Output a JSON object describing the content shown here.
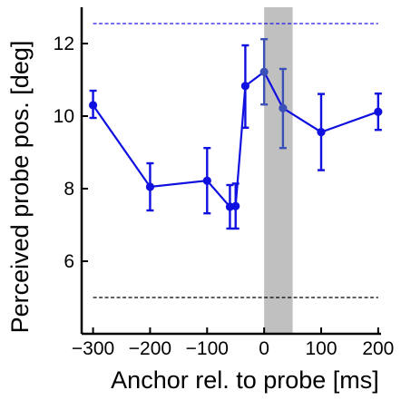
{
  "chart_data": {
    "type": "line",
    "title": "",
    "xlabel": "Anchor rel. to probe [ms]",
    "ylabel": "Perceived probe pos. [deg]",
    "xlim": [
      -320,
      205
    ],
    "ylim": [
      4.0,
      13.0
    ],
    "x_ticks": [
      -300,
      -200,
      -100,
      0,
      100,
      200
    ],
    "x_tick_labels": [
      "−300",
      "−200",
      "−100",
      "0",
      "100",
      "200"
    ],
    "y_ticks": [
      6,
      8,
      10,
      12
    ],
    "y_tick_labels": [
      "6",
      "8",
      "10",
      "12"
    ],
    "grid": false,
    "legend": "none",
    "shaded_region": {
      "x_from": 0,
      "x_to": 50,
      "color": "#c0c0c0"
    },
    "reference_lines": [
      {
        "y": 12.55,
        "color": "#1a1ae6"
      },
      {
        "y": 5.0,
        "color": "#000000"
      }
    ],
    "series": [
      {
        "color": "#1010e0",
        "x": [
          -300,
          -200,
          -100,
          -60,
          -50,
          -33,
          0,
          33,
          100,
          200
        ],
        "y": [
          10.3,
          8.05,
          8.22,
          7.5,
          7.52,
          10.83,
          11.22,
          10.22,
          9.56,
          10.12
        ],
        "y_err_low": [
          0.35,
          0.65,
          0.9,
          0.6,
          0.62,
          1.15,
          0.9,
          1.1,
          1.05,
          0.5
        ],
        "y_err_high": [
          0.4,
          0.65,
          0.9,
          0.6,
          0.62,
          1.12,
          0.9,
          1.08,
          1.05,
          0.5
        ]
      }
    ]
  }
}
